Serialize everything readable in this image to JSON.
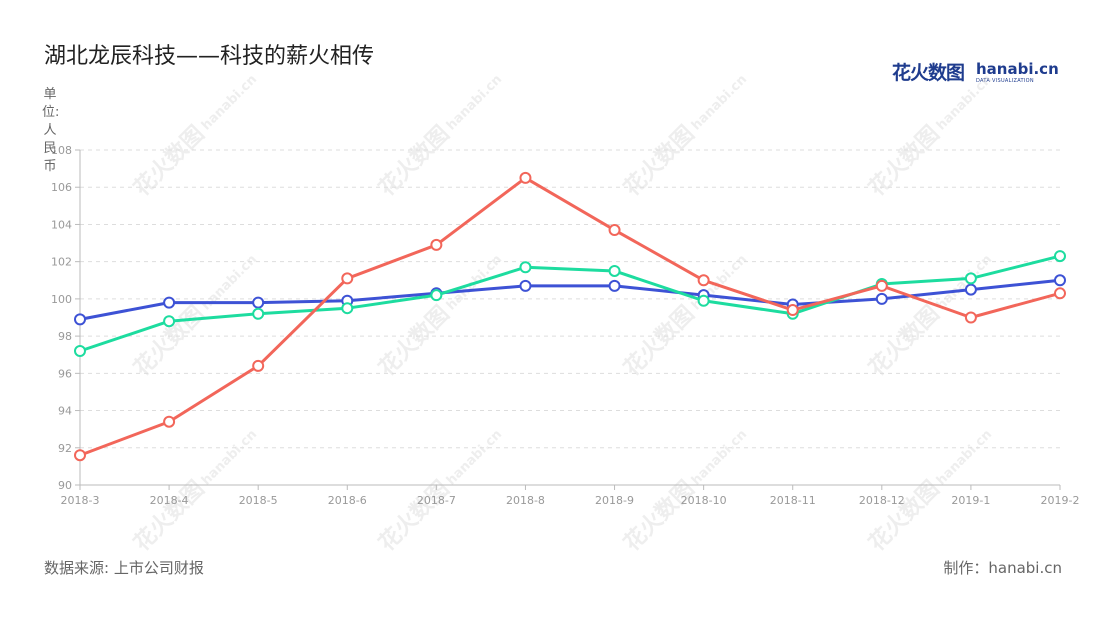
{
  "title": "湖北龙辰科技——科技的薪火相传",
  "unit_label": "单位:人民币",
  "source": "数据来源: 上市公司财报",
  "maker": "制作：hanabi.cn",
  "logo": {
    "cn": "花火数图",
    "en": "hanabi.cn",
    "sub": "DATA VISUALIZATION"
  },
  "watermark": {
    "cn": "花火数图",
    "en": "hanabi.cn"
  },
  "chart_data": {
    "type": "line",
    "categories": [
      "2018-3",
      "2018-4",
      "2018-5",
      "2018-6",
      "2018-7",
      "2018-8",
      "2018-9",
      "2018-10",
      "2018-11",
      "2018-12",
      "2019-1",
      "2019-2"
    ],
    "ylim": [
      90,
      108
    ],
    "yticks": [
      90,
      92,
      94,
      96,
      98,
      100,
      102,
      104,
      106,
      108
    ],
    "grid": true,
    "series": [
      {
        "color": "#3d52d5",
        "values": [
          98.9,
          99.8,
          99.8,
          99.9,
          100.3,
          100.7,
          100.7,
          100.2,
          99.7,
          100.0,
          100.5,
          101.0
        ]
      },
      {
        "color": "#1ddc9f",
        "values": [
          97.2,
          98.8,
          99.2,
          99.5,
          100.2,
          101.7,
          101.5,
          99.9,
          99.2,
          100.8,
          101.1,
          102.3
        ]
      },
      {
        "color": "#f2665a",
        "values": [
          91.6,
          93.4,
          96.4,
          101.1,
          102.9,
          106.5,
          103.7,
          101.0,
          99.4,
          100.7,
          99.0,
          100.3
        ]
      }
    ]
  }
}
